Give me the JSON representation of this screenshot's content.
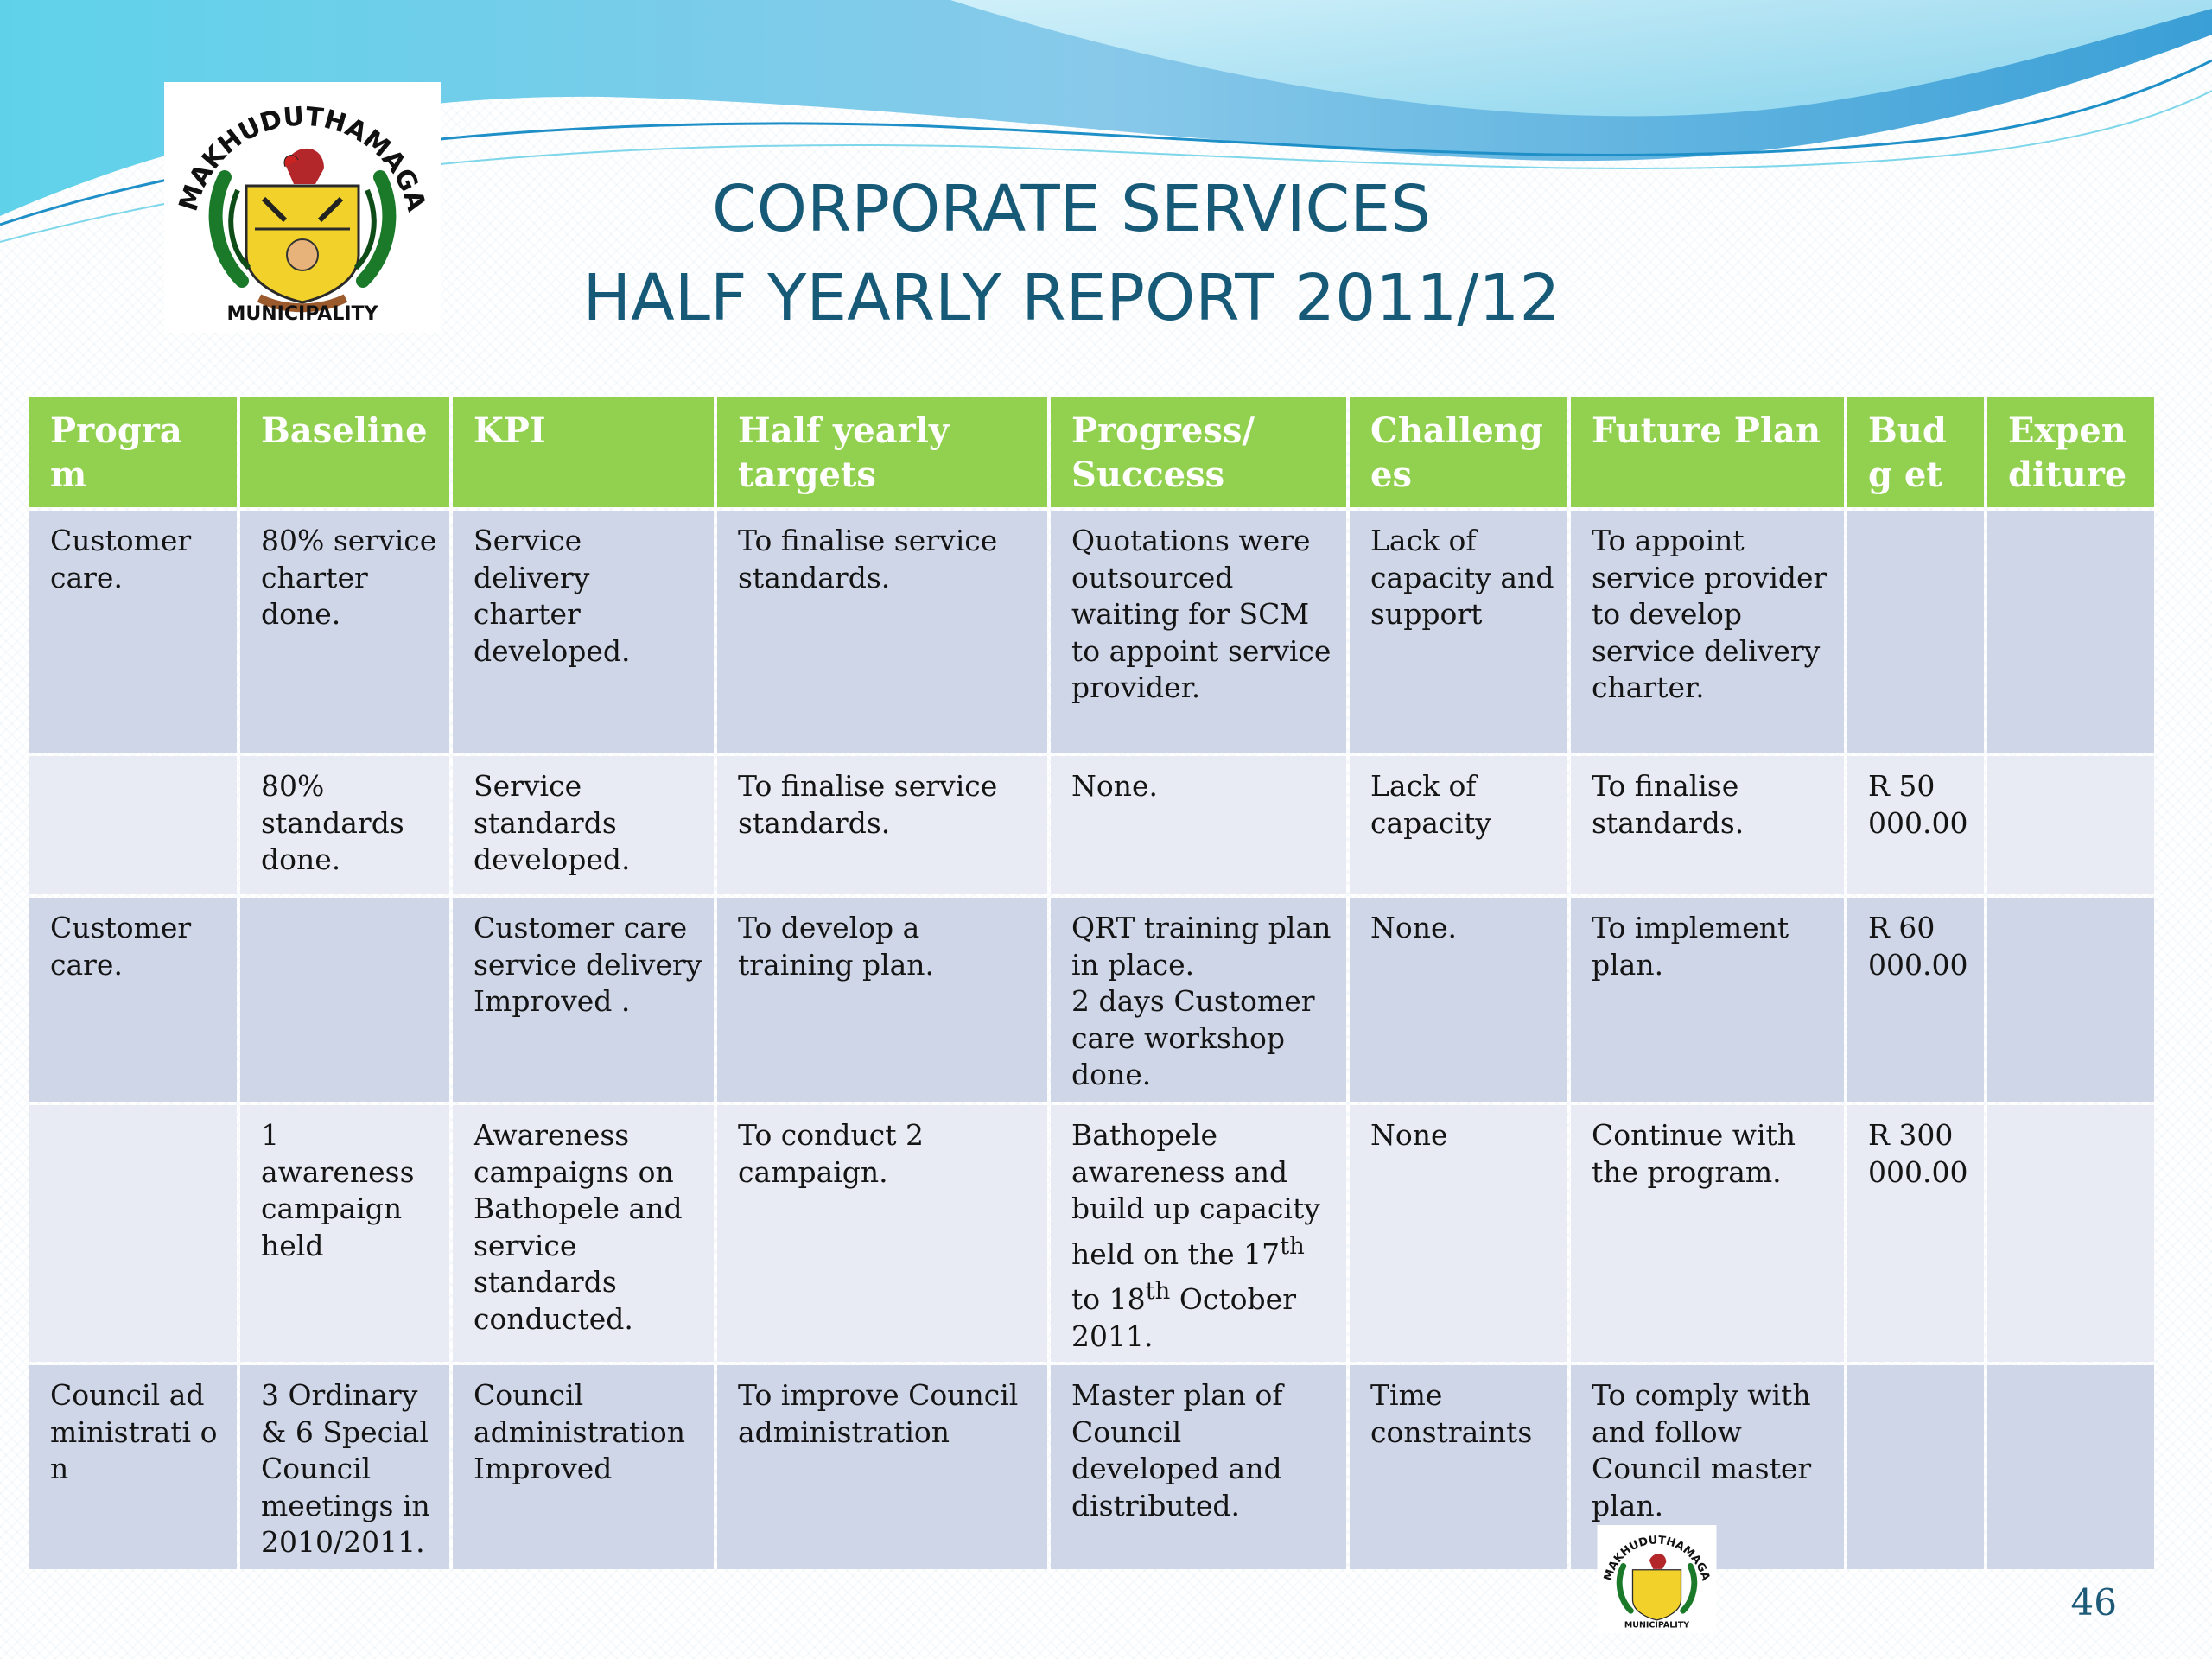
{
  "slide": {
    "title_line1": "CORPORATE SERVICES",
    "title_line2": "HALF YEARLY REPORT 2011/12",
    "page_number": "46"
  },
  "logo": {
    "name_top": "MAKHUDUTHAMAGA",
    "name_bottom": "MUNICIPALITY"
  },
  "colors": {
    "header_bg": "#92d050",
    "row_dark": "#cfd6e7",
    "row_light": "#e8ebf4",
    "title": "#165a78"
  },
  "table": {
    "headers": [
      "Program",
      "Baseline",
      "KPI",
      "Half yearly targets",
      "Progress/ Success",
      "Challeng es",
      "Future Plan",
      "Budg et",
      "Expen diture"
    ],
    "rows": [
      {
        "program": "Customer care.",
        "baseline": "80% service charter done.",
        "kpi": "Service delivery charter developed.",
        "target": "To finalise service standards.",
        "progress": "Quotations were outsourced waiting for SCM to appoint service provider.",
        "challenges": "Lack of capacity and support",
        "future_plan": "To appoint service provider to develop service delivery charter.",
        "budget": "",
        "expenditure": ""
      },
      {
        "program": "",
        "baseline": "80% standards done.",
        "kpi": "Service standards developed.",
        "target": "To finalise service standards.",
        "progress": "None.",
        "challenges": "Lack of capacity",
        "future_plan": "To finalise standards.",
        "budget": "R 50 000.00",
        "expenditure": ""
      },
      {
        "program": "Customer care.",
        "baseline": "",
        "kpi": "Customer  care service delivery Improved .",
        "target": "To  develop a training plan.",
        "progress_line1": "QRT training plan in place.",
        "progress_line2": "2 days Customer care workshop done.",
        "challenges": "None.",
        "future_plan": "To implement plan.",
        "budget": "R 60 000.00",
        "expenditure": ""
      },
      {
        "program": "",
        "baseline": "1 awareness campaign held",
        "kpi": "Awareness campaigns on Bathopele and service standards conducted.",
        "target": "To conduct 2 campaign.",
        "progress_a": "Bathopele awareness and build up capacity held on the 17",
        "progress_sup1": "th",
        "progress_b": " to 18",
        "progress_sup2": "th",
        "progress_c": " October 2011.",
        "challenges": "None",
        "future_plan": "Continue with the program.",
        "budget": "R 300 000.00",
        "expenditure": ""
      },
      {
        "program": "Council administrati on",
        "baseline": "3 Ordinary & 6 Special Council meetings in 2010/2011.",
        "kpi": "Council administration Improved",
        "target": "To improve Council administration",
        "progress": "Master plan of Council developed and distributed.",
        "challenges": "Time constraints",
        "future_plan": "To comply with and follow Council master plan.",
        "budget": "",
        "expenditure": ""
      }
    ]
  }
}
